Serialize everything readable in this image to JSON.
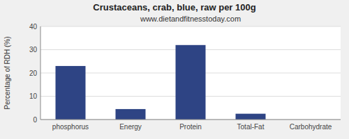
{
  "chart_data": {
    "type": "bar",
    "title": "Crustaceans, crab, blue, raw per 100g",
    "subtitle": "www.dietandfitnesstoday.com",
    "categories": [
      "phosphorus",
      "Energy",
      "Protein",
      "Total-Fat",
      "Carbohydrate"
    ],
    "values": [
      23,
      4.5,
      32,
      2.5,
      0
    ],
    "color": "#2e4484",
    "ylabel": "Percentage of RDH (%)",
    "ylim": [
      0,
      40
    ],
    "yticks": [
      0,
      10,
      20,
      30,
      40
    ],
    "grid": true
  }
}
